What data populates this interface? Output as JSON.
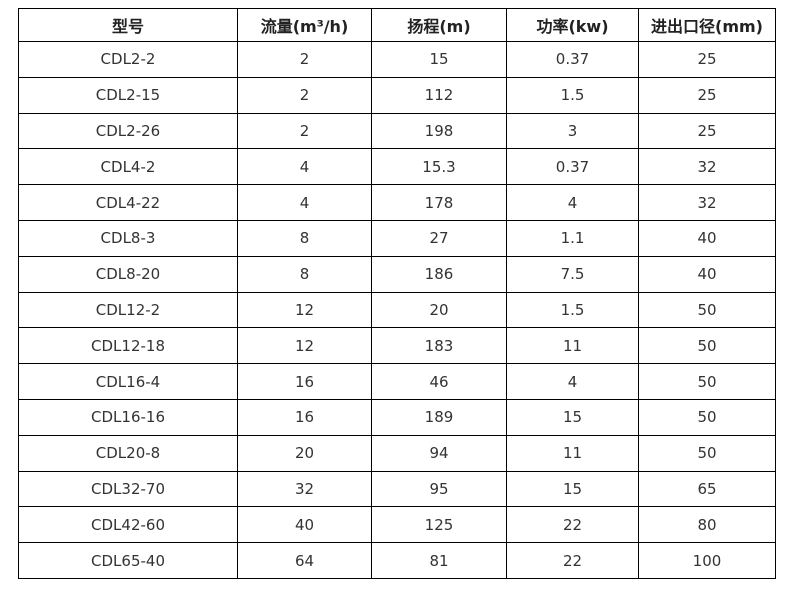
{
  "page": {
    "background_color": "#ffffff",
    "border_color": "#000000",
    "text_color": "#333333"
  },
  "table": {
    "columns": [
      "型号",
      "流量(m³/h)",
      "扬程(m)",
      "功率(kw)",
      "进出口径(mm)"
    ],
    "rows": [
      [
        "CDL2-2",
        "2",
        "15",
        "0.37",
        "25"
      ],
      [
        "CDL2-15",
        "2",
        "112",
        "1.5",
        "25"
      ],
      [
        "CDL2-26",
        "2",
        "198",
        "3",
        "25"
      ],
      [
        "CDL4-2",
        "4",
        "15.3",
        "0.37",
        "32"
      ],
      [
        "CDL4-22",
        "4",
        "178",
        "4",
        "32"
      ],
      [
        "CDL8-3",
        "8",
        "27",
        "1.1",
        "40"
      ],
      [
        "CDL8-20",
        "8",
        "186",
        "7.5",
        "40"
      ],
      [
        "CDL12-2",
        "12",
        "20",
        "1.5",
        "50"
      ],
      [
        "CDL12-18",
        "12",
        "183",
        "11",
        "50"
      ],
      [
        "CDL16-4",
        "16",
        "46",
        "4",
        "50"
      ],
      [
        "CDL16-16",
        "16",
        "189",
        "15",
        "50"
      ],
      [
        "CDL20-8",
        "20",
        "94",
        "11",
        "50"
      ],
      [
        "CDL32-70",
        "32",
        "95",
        "15",
        "65"
      ],
      [
        "CDL42-60",
        "40",
        "125",
        "22",
        "80"
      ],
      [
        "CDL65-40",
        "64",
        "81",
        "22",
        "100"
      ]
    ]
  }
}
